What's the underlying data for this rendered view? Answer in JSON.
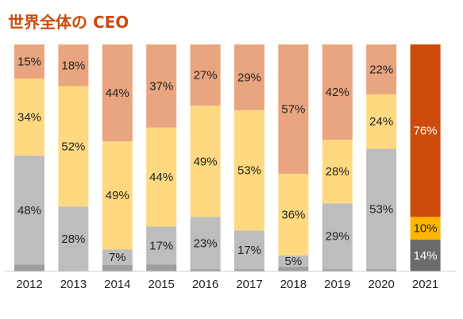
{
  "chart_data": {
    "type": "bar",
    "stacked": true,
    "title": "世界全体の CEO",
    "categories": [
      "2012",
      "2013",
      "2014",
      "2015",
      "2016",
      "2017",
      "2018",
      "2019",
      "2020",
      "2021"
    ],
    "ylim": [
      0,
      100
    ],
    "grid": false,
    "legend": "none",
    "series": [
      {
        "values": [
          3,
          0,
          3,
          3,
          1,
          1,
          2,
          1,
          1,
          0
        ],
        "labels": [
          "",
          "",
          "",
          "",
          "",
          "",
          "",
          "",
          "",
          ""
        ]
      },
      {
        "values": [
          48,
          28,
          7,
          17,
          23,
          17,
          5,
          29,
          53,
          14
        ],
        "labels": [
          "48%",
          "28%",
          "7%",
          "17%",
          "23%",
          "17%",
          "5%",
          "29%",
          "53%",
          "14%"
        ]
      },
      {
        "values": [
          34,
          52,
          49,
          44,
          49,
          53,
          36,
          28,
          24,
          10
        ],
        "labels": [
          "34%",
          "52%",
          "49%",
          "44%",
          "49%",
          "53%",
          "36%",
          "28%",
          "24%",
          "10%"
        ]
      },
      {
        "values": [
          15,
          18,
          44,
          37,
          27,
          29,
          57,
          42,
          22,
          76
        ],
        "labels": [
          "15%",
          "18%",
          "44%",
          "37%",
          "27%",
          "29%",
          "57%",
          "42%",
          "22%",
          "76%"
        ]
      }
    ],
    "colors": {
      "default": [
        "#9e9e9e",
        "#bdbdbd",
        "#ffd980",
        "#e9a57f"
      ],
      "highlight": [
        "#4d4d4d",
        "#6b6b6b",
        "#ffb500",
        "#cc4b0c"
      ],
      "highlight_category": "2021",
      "highlight_label_color": "#ffffff"
    }
  }
}
